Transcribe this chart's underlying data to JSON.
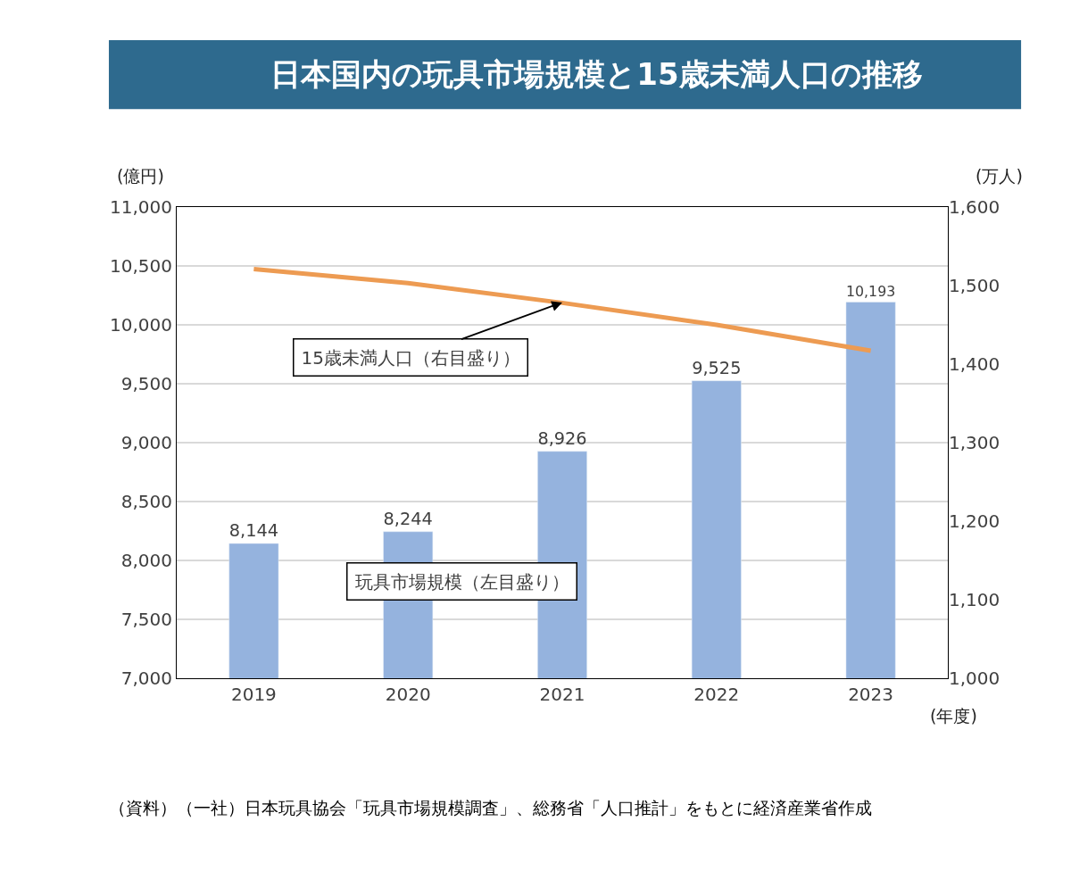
{
  "chart_data": {
    "type": "bar",
    "title": "日本国内の玩具市場規模と15歳未満人口の推移",
    "xlabel": "(年度)",
    "ylabel": "(億円)",
    "y2label": "(万人)",
    "categories": [
      "2019",
      "2020",
      "2021",
      "2022",
      "2023"
    ],
    "series": [
      {
        "color": "#95b3de",
        "values": [
          8144,
          8244,
          8926,
          9525,
          10193
        ],
        "value_labels": [
          "8,144",
          "8,244",
          "8,926",
          "9,525",
          "10,193"
        ]
      },
      {
        "type": "line",
        "axis": "y2",
        "color": "#ed9b52",
        "values": [
          1521,
          1503,
          1478,
          1450,
          1417
        ]
      }
    ],
    "ylim": [
      7000,
      11000
    ],
    "yticks": [
      {
        "value": 7000,
        "label": "7,000"
      },
      {
        "value": 7500,
        "label": "7,500"
      },
      {
        "value": 8000,
        "label": "8,000"
      },
      {
        "value": 8500,
        "label": "8,500"
      },
      {
        "value": 9000,
        "label": "9,000"
      },
      {
        "value": 9500,
        "label": "9,500"
      },
      {
        "value": 10000,
        "label": "10,000"
      },
      {
        "value": 10500,
        "label": "10,500"
      },
      {
        "value": 11000,
        "label": "11,000"
      }
    ],
    "y2lim": [
      1000,
      1600
    ],
    "y2ticks": [
      {
        "value": 1000,
        "label": "1,000"
      },
      {
        "value": 1100,
        "label": "1,100"
      },
      {
        "value": 1200,
        "label": "1,200"
      },
      {
        "value": 1300,
        "label": "1,300"
      },
      {
        "value": 1400,
        "label": "1,400"
      },
      {
        "value": 1500,
        "label": "1,500"
      },
      {
        "value": 1600,
        "label": "1,600"
      }
    ],
    "grid": "y",
    "legend": false,
    "marker": "none",
    "line_style": "solid",
    "annotations": [
      {
        "text": "15歳未満人口（右目盛り）",
        "x": "2021",
        "y": 10190
      },
      "玩具市場規模（左目盛り）",
      "（資料）（一社）日本玩具協会「玩具市場規模調査」、総務省「人口推計」をもとに経済産業省作成"
    ]
  }
}
